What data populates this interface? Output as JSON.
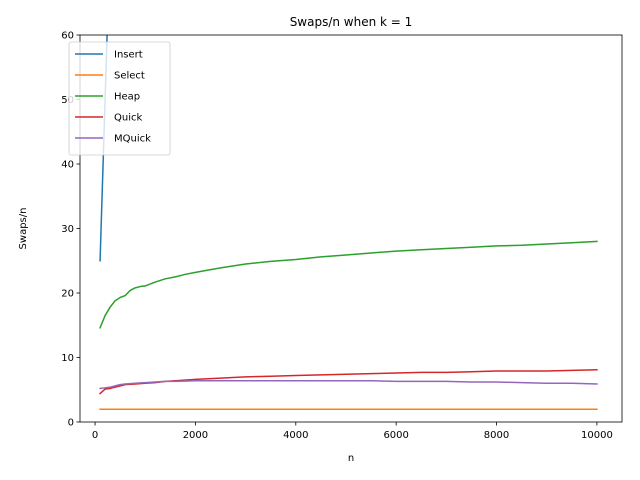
{
  "chart_data": {
    "type": "line",
    "title": "Swaps/n when k = 1",
    "xlabel": "n",
    "ylabel": "Swaps/n",
    "xlim": [
      -300,
      10500
    ],
    "ylim": [
      0,
      60
    ],
    "xticks": [
      0,
      2000,
      4000,
      6000,
      8000,
      10000
    ],
    "yticks": [
      0,
      10,
      20,
      30,
      40,
      50,
      60
    ],
    "grid": false,
    "legend_position": "top-left",
    "series": [
      {
        "name": "Insert",
        "color": "#1f77b4",
        "x": [
          100,
          200,
          300
        ],
        "y": [
          25,
          50,
          75
        ]
      },
      {
        "name": "Select",
        "color": "#ff7f0e",
        "x": [
          100,
          1000,
          2000,
          3000,
          4000,
          5000,
          6000,
          7000,
          8000,
          9000,
          10000
        ],
        "y": [
          1.98,
          1.98,
          1.98,
          1.98,
          1.98,
          1.98,
          1.98,
          1.98,
          1.98,
          1.98,
          1.98
        ]
      },
      {
        "name": "Heap",
        "color": "#2ca02c",
        "x": [
          100,
          200,
          300,
          400,
          500,
          600,
          700,
          800,
          900,
          1000,
          1200,
          1400,
          1600,
          1800,
          2000,
          2500,
          3000,
          3500,
          4000,
          4500,
          5000,
          5500,
          6000,
          6500,
          7000,
          7500,
          8000,
          8500,
          9000,
          9500,
          10000
        ],
        "y": [
          14.6,
          16.5,
          17.8,
          18.8,
          19.3,
          19.6,
          20.4,
          20.8,
          21.0,
          21.1,
          21.7,
          22.2,
          22.5,
          22.9,
          23.2,
          23.9,
          24.5,
          24.9,
          25.2,
          25.6,
          25.9,
          26.2,
          26.5,
          26.7,
          26.9,
          27.1,
          27.3,
          27.4,
          27.6,
          27.8,
          28.0
        ]
      },
      {
        "name": "Quick",
        "color": "#d62728",
        "x": [
          100,
          200,
          300,
          400,
          500,
          600,
          800,
          1000,
          1200,
          1400,
          1600,
          2000,
          2500,
          3000,
          3500,
          4000,
          4500,
          5000,
          5500,
          6000,
          6500,
          7000,
          7500,
          8000,
          8500,
          9000,
          9500,
          10000
        ],
        "y": [
          4.4,
          5.1,
          5.2,
          5.4,
          5.6,
          5.8,
          5.9,
          6.0,
          6.1,
          6.3,
          6.4,
          6.6,
          6.8,
          7.0,
          7.1,
          7.2,
          7.3,
          7.4,
          7.5,
          7.6,
          7.7,
          7.7,
          7.8,
          7.9,
          7.9,
          7.9,
          8.0,
          8.1
        ]
      },
      {
        "name": "MQuick",
        "color": "#9467bd",
        "x": [
          100,
          200,
          300,
          400,
          500,
          600,
          800,
          1000,
          1200,
          1400,
          1600,
          2000,
          2500,
          3000,
          3500,
          4000,
          4500,
          5000,
          5500,
          6000,
          6500,
          7000,
          7500,
          8000,
          8500,
          9000,
          9500,
          10000
        ],
        "y": [
          5.2,
          5.3,
          5.4,
          5.6,
          5.8,
          5.9,
          6.0,
          6.1,
          6.2,
          6.3,
          6.3,
          6.4,
          6.4,
          6.4,
          6.4,
          6.4,
          6.4,
          6.4,
          6.4,
          6.3,
          6.3,
          6.3,
          6.2,
          6.2,
          6.1,
          6.0,
          6.0,
          5.9
        ]
      }
    ]
  }
}
